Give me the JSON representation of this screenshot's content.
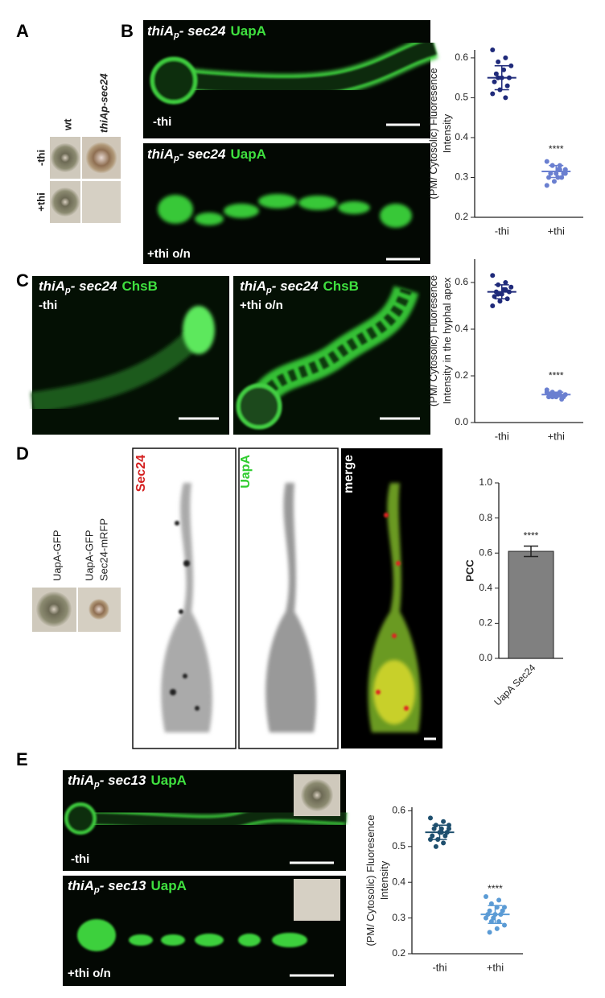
{
  "panels": {
    "A": {
      "letter": "A",
      "columns": [
        "wt",
        "thiAp-sec24"
      ],
      "rows": [
        "-thi",
        "+thi"
      ]
    },
    "B": {
      "letter": "B",
      "images": [
        {
          "gene_prefix": "thiA",
          "gene_sub": "p",
          "gene_suffix": "- sec24",
          "protein": "UapA",
          "condition": "-thi"
        },
        {
          "gene_prefix": "thiA",
          "gene_sub": "p",
          "gene_suffix": "- sec24",
          "protein": "UapA",
          "condition": "+thi o/n"
        }
      ]
    },
    "C": {
      "letter": "C",
      "images": [
        {
          "gene_prefix": "thiA",
          "gene_sub": "p",
          "gene_suffix": "- sec24",
          "protein": "ChsB",
          "condition": "-thi"
        },
        {
          "gene_prefix": "thiA",
          "gene_sub": "p",
          "gene_suffix": "- sec24",
          "protein": "ChsB",
          "condition": "+thi o/n"
        }
      ]
    },
    "D": {
      "letter": "D",
      "strains": [
        "UapA-GFP",
        "UapA-GFP",
        "Sec24-mRFP"
      ],
      "channels": [
        "Sec24",
        "UapA",
        "merge"
      ]
    },
    "E": {
      "letter": "E",
      "images": [
        {
          "gene_prefix": "thiA",
          "gene_sub": "p",
          "gene_suffix": "- sec13",
          "protein": "UapA",
          "condition": "-thi"
        },
        {
          "gene_prefix": "thiA",
          "gene_sub": "p",
          "gene_suffix": "- sec13",
          "protein": "UapA",
          "condition": "+thi o/n"
        }
      ]
    }
  },
  "chart_data": [
    {
      "type": "dotplot",
      "ylabel": [
        "(PM/ Cytosolic) Fluoresence",
        "Intensity"
      ],
      "categories": [
        "-thi",
        "+thi"
      ],
      "groups": [
        {
          "color": "#1f2a7a",
          "values": [
            0.62,
            0.6,
            0.59,
            0.58,
            0.57,
            0.56,
            0.55,
            0.55,
            0.54,
            0.53,
            0.52,
            0.51,
            0.5,
            0.55
          ],
          "mean": 0.55,
          "sd": 0.03
        },
        {
          "color": "#6a7fd0",
          "values": [
            0.34,
            0.33,
            0.33,
            0.32,
            0.32,
            0.31,
            0.31,
            0.31,
            0.3,
            0.3,
            0.29,
            0.28,
            0.32,
            0.33,
            0.31,
            0.3
          ],
          "mean": 0.315,
          "sd": 0.015
        }
      ],
      "significance": "****",
      "ylim": [
        0.2,
        0.62
      ],
      "yticks": [
        0.2,
        0.3,
        0.4,
        0.5,
        0.6
      ]
    },
    {
      "type": "dotplot",
      "ylabel": [
        "(PM/ Cytosolic) Fluoresence",
        "Intensity in the hyphal apex"
      ],
      "categories": [
        "-thi",
        "+thi"
      ],
      "groups": [
        {
          "color": "#1f2a7a",
          "values": [
            0.63,
            0.6,
            0.59,
            0.58,
            0.57,
            0.56,
            0.56,
            0.55,
            0.54,
            0.53,
            0.52,
            0.5,
            0.57,
            0.55
          ],
          "mean": 0.56,
          "sd": 0.03
        },
        {
          "color": "#6a7fd0",
          "values": [
            0.14,
            0.13,
            0.13,
            0.12,
            0.12,
            0.12,
            0.11,
            0.11,
            0.11,
            0.1,
            0.12,
            0.13,
            0.12,
            0.11
          ],
          "mean": 0.12,
          "sd": 0.01
        }
      ],
      "significance": "****",
      "ylim": [
        0,
        0.7
      ],
      "yticks": [
        {
          "value": 0,
          "label": "0.0"
        },
        0.2,
        0.4,
        0.6
      ]
    },
    {
      "type": "bar",
      "ylabel": [
        "PCC"
      ],
      "categories": [
        "UapA Sec24"
      ],
      "values": [
        0.61
      ],
      "errors": [
        0.03
      ],
      "color": "#808080",
      "significance": "****",
      "ylim": [
        0,
        1
      ],
      "yticks": [
        {
          "value": 0,
          "label": "0.0"
        },
        0.2,
        0.4,
        0.6,
        0.8,
        {
          "value": 1,
          "label": "1.0"
        }
      ]
    },
    {
      "type": "dotplot",
      "ylabel": [
        "(PM/ Cytosolic) Fluoresence",
        "Intensity"
      ],
      "categories": [
        "-thi",
        "+thi"
      ],
      "groups": [
        {
          "color": "#1e4f6e",
          "values": [
            0.58,
            0.57,
            0.56,
            0.56,
            0.55,
            0.55,
            0.54,
            0.54,
            0.53,
            0.53,
            0.52,
            0.52,
            0.51,
            0.5,
            0.55,
            0.54
          ],
          "mean": 0.54,
          "sd": 0.02
        },
        {
          "color": "#5b9bd5",
          "values": [
            0.36,
            0.35,
            0.34,
            0.33,
            0.33,
            0.32,
            0.32,
            0.31,
            0.31,
            0.31,
            0.3,
            0.3,
            0.29,
            0.29,
            0.28,
            0.27,
            0.26,
            0.32
          ],
          "mean": 0.31,
          "sd": 0.025
        }
      ],
      "significance": "****",
      "ylim": [
        0.2,
        0.61
      ],
      "yticks": [
        0.2,
        0.3,
        0.4,
        0.5,
        0.6
      ]
    }
  ]
}
